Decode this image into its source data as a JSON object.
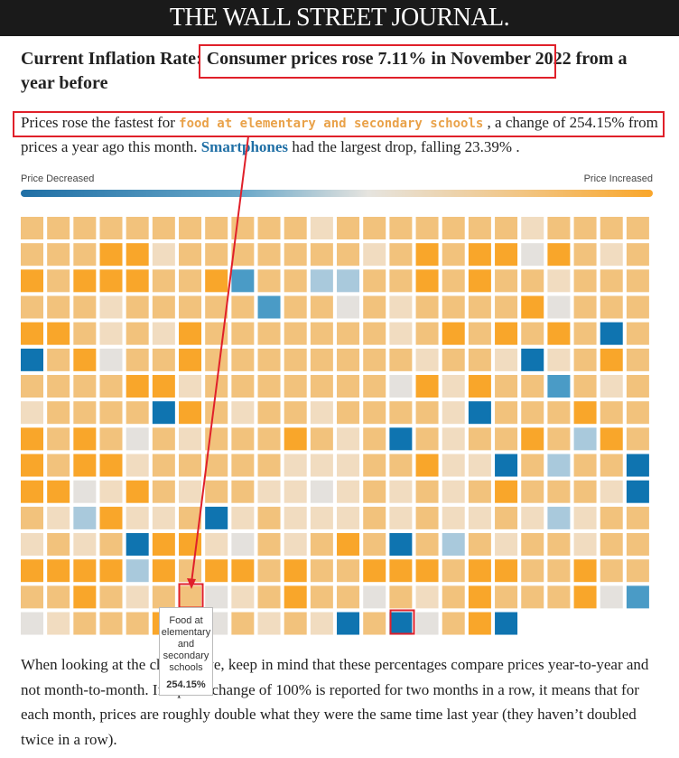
{
  "header": {
    "title": "THE WALL STREET JOURNAL."
  },
  "headline": {
    "label": "Current Inflation Rate:",
    "highlight": "Consumer prices rose 7.11% in November 2022",
    "rest": "from a year before"
  },
  "summary": {
    "part1": "Prices rose the fastest for",
    "top_item": "food at elementary and secondary schools",
    "part2": ", a change of",
    "top_change": "254.15%",
    "part3": "from prices a year ago this month.",
    "bottom_item": "Smartphones",
    "part4": "had the largest drop, falling",
    "bottom_change": "23.39%",
    "part5": "."
  },
  "legend": {
    "low": "Price Decreased",
    "high": "Price Increased"
  },
  "grid": {
    "palette": [
      "#0f74b0",
      "#4a9bc6",
      "#a9c9dc",
      "#e4e1dd",
      "#f1dcc0",
      "#f2c27c",
      "#f9a62a"
    ],
    "rows": [
      [
        5,
        5,
        5,
        5,
        5,
        5,
        5,
        5,
        5,
        5,
        5,
        4,
        5,
        5,
        5,
        5,
        5,
        5,
        5,
        4,
        5,
        5,
        5,
        5
      ],
      [
        5,
        5,
        5,
        6,
        6,
        4,
        5,
        5,
        5,
        5,
        5,
        5,
        5,
        4,
        5,
        6,
        5,
        6,
        6,
        3,
        6,
        5,
        4,
        5
      ],
      [
        6,
        5,
        6,
        6,
        6,
        5,
        5,
        6,
        1,
        5,
        5,
        2,
        2,
        5,
        5,
        6,
        5,
        6,
        5,
        5,
        4,
        5,
        5,
        5
      ],
      [
        5,
        5,
        5,
        4,
        5,
        5,
        5,
        5,
        5,
        1,
        5,
        5,
        3,
        5,
        4,
        5,
        5,
        5,
        5,
        6,
        3,
        5,
        5,
        5
      ],
      [
        6,
        6,
        5,
        4,
        5,
        4,
        6,
        5,
        5,
        5,
        5,
        5,
        5,
        5,
        4,
        5,
        6,
        5,
        6,
        5,
        6,
        5,
        0,
        5
      ],
      [
        0,
        5,
        6,
        3,
        5,
        5,
        6,
        5,
        5,
        5,
        5,
        5,
        5,
        5,
        5,
        4,
        5,
        5,
        4,
        0,
        4,
        5,
        6,
        5
      ],
      [
        5,
        5,
        5,
        5,
        6,
        6,
        4,
        5,
        5,
        5,
        5,
        5,
        5,
        5,
        3,
        6,
        4,
        6,
        5,
        5,
        1,
        5,
        4,
        5
      ],
      [
        4,
        5,
        5,
        5,
        5,
        0,
        6,
        5,
        4,
        5,
        5,
        4,
        5,
        5,
        5,
        5,
        4,
        0,
        5,
        5,
        5,
        6,
        5,
        5
      ],
      [
        6,
        5,
        6,
        5,
        3,
        5,
        4,
        5,
        5,
        5,
        6,
        5,
        4,
        5,
        0,
        5,
        4,
        5,
        5,
        6,
        5,
        2,
        6,
        5
      ],
      [
        6,
        5,
        6,
        6,
        4,
        5,
        5,
        5,
        5,
        5,
        4,
        4,
        4,
        5,
        5,
        6,
        4,
        4,
        0,
        5,
        2,
        5,
        5,
        0
      ],
      [
        6,
        6,
        3,
        4,
        6,
        5,
        4,
        5,
        5,
        4,
        4,
        3,
        4,
        5,
        4,
        5,
        4,
        5,
        6,
        5,
        5,
        5,
        4,
        0
      ],
      [
        5,
        4,
        2,
        6,
        4,
        4,
        5,
        0,
        4,
        5,
        4,
        4,
        4,
        5,
        4,
        5,
        4,
        4,
        5,
        4,
        2,
        4,
        5,
        5
      ],
      [
        4,
        5,
        4,
        5,
        0,
        6,
        6,
        4,
        3,
        5,
        4,
        5,
        6,
        5,
        0,
        5,
        2,
        5,
        4,
        5,
        5,
        4,
        5,
        5
      ],
      [
        6,
        6,
        6,
        6,
        2,
        6,
        5,
        6,
        6,
        5,
        6,
        5,
        5,
        6,
        6,
        6,
        5,
        6,
        6,
        5,
        5,
        6,
        5,
        5
      ],
      [
        5,
        5,
        6,
        5,
        4,
        5,
        5,
        3,
        4,
        5,
        6,
        5,
        5,
        3,
        5,
        4,
        5,
        6,
        5,
        5,
        5,
        6,
        3,
        1
      ],
      [
        3,
        4,
        5,
        5,
        5,
        6,
        6,
        3,
        5,
        4,
        5,
        4,
        0,
        5,
        0,
        3,
        5,
        6,
        0
      ]
    ]
  },
  "tooltip": {
    "name": "Food at elementary and secondary schools",
    "change": "254.15%"
  },
  "body": {
    "text": "When looking at the chart above, keep in mind that these percentages compare prices year-to-year and not month-to-month. If a price change of 100% is reported for two months in a row, it means that for each month, prices are roughly double what they were the same time last year (they haven’t doubled twice in a row)."
  }
}
